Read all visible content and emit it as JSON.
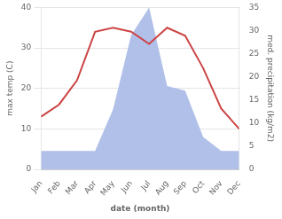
{
  "chart_data": {
    "type": "line",
    "xlabel": "date (month)",
    "ylabel": "max temp (C)",
    "y2label": "med. precipitation (kg/m2)",
    "categories": [
      "Jan",
      "Feb",
      "Mar",
      "Apr",
      "May",
      "Jun",
      "Jul",
      "Aug",
      "Sep",
      "Oct",
      "Nov",
      "Dec"
    ],
    "series": [
      {
        "type": "area",
        "axis": "y2",
        "color": "#b0c0e8",
        "values": [
          4,
          4,
          4,
          4,
          13,
          29,
          35,
          18,
          17,
          7,
          4,
          4
        ]
      },
      {
        "type": "line",
        "color": "#cc4444",
        "values": [
          13,
          16,
          22,
          34,
          35,
          34,
          31,
          35,
          33,
          25,
          15,
          10
        ]
      }
    ],
    "ylim": [
      0,
      40
    ],
    "yticks": [
      0,
      10,
      20,
      30,
      40
    ],
    "y2lim": [
      0,
      35
    ],
    "y2ticks": [
      0,
      5,
      10,
      15,
      20,
      25,
      30,
      35
    ],
    "grid": "y"
  }
}
